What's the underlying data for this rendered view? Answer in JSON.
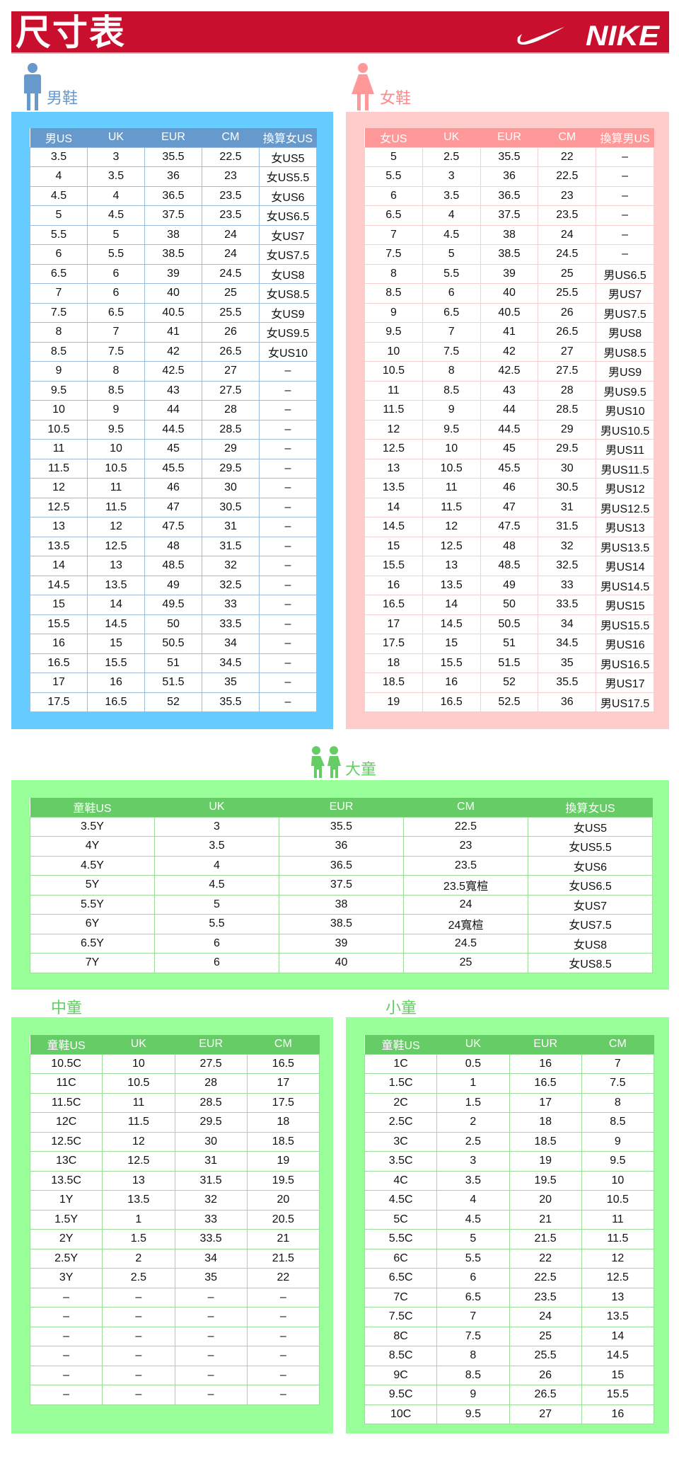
{
  "header": {
    "title": "尺寸表",
    "brand": "NIKE"
  },
  "colors": {
    "header": "#c8102e",
    "men_panel": "#66ccff",
    "men_header": "#6699cc",
    "women_panel": "#ffcccc",
    "women_header": "#ff9999",
    "kids_panel": "#99ff99",
    "kids_header": "#66cc66"
  },
  "men": {
    "label": "男鞋",
    "icon": "man-icon",
    "columns": [
      "男US",
      "UK",
      "EUR",
      "CM",
      "換算女US"
    ],
    "rows": [
      [
        "3.5",
        "3",
        "35.5",
        "22.5",
        "女US5"
      ],
      [
        "4",
        "3.5",
        "36",
        "23",
        "女US5.5"
      ],
      [
        "4.5",
        "4",
        "36.5",
        "23.5",
        "女US6"
      ],
      [
        "5",
        "4.5",
        "37.5",
        "23.5",
        "女US6.5"
      ],
      [
        "5.5",
        "5",
        "38",
        "24",
        "女US7"
      ],
      [
        "6",
        "5.5",
        "38.5",
        "24",
        "女US7.5"
      ],
      [
        "6.5",
        "6",
        "39",
        "24.5",
        "女US8"
      ],
      [
        "7",
        "6",
        "40",
        "25",
        "女US8.5"
      ],
      [
        "7.5",
        "6.5",
        "40.5",
        "25.5",
        "女US9"
      ],
      [
        "8",
        "7",
        "41",
        "26",
        "女US9.5"
      ],
      [
        "8.5",
        "7.5",
        "42",
        "26.5",
        "女US10"
      ],
      [
        "9",
        "8",
        "42.5",
        "27",
        "–"
      ],
      [
        "9.5",
        "8.5",
        "43",
        "27.5",
        "–"
      ],
      [
        "10",
        "9",
        "44",
        "28",
        "–"
      ],
      [
        "10.5",
        "9.5",
        "44.5",
        "28.5",
        "–"
      ],
      [
        "11",
        "10",
        "45",
        "29",
        "–"
      ],
      [
        "11.5",
        "10.5",
        "45.5",
        "29.5",
        "–"
      ],
      [
        "12",
        "11",
        "46",
        "30",
        "–"
      ],
      [
        "12.5",
        "11.5",
        "47",
        "30.5",
        "–"
      ],
      [
        "13",
        "12",
        "47.5",
        "31",
        "–"
      ],
      [
        "13.5",
        "12.5",
        "48",
        "31.5",
        "–"
      ],
      [
        "14",
        "13",
        "48.5",
        "32",
        "–"
      ],
      [
        "14.5",
        "13.5",
        "49",
        "32.5",
        "–"
      ],
      [
        "15",
        "14",
        "49.5",
        "33",
        "–"
      ],
      [
        "15.5",
        "14.5",
        "50",
        "33.5",
        "–"
      ],
      [
        "16",
        "15",
        "50.5",
        "34",
        "–"
      ],
      [
        "16.5",
        "15.5",
        "51",
        "34.5",
        "–"
      ],
      [
        "17",
        "16",
        "51.5",
        "35",
        "–"
      ],
      [
        "17.5",
        "16.5",
        "52",
        "35.5",
        "–"
      ]
    ]
  },
  "women": {
    "label": "女鞋",
    "icon": "woman-icon",
    "columns": [
      "女US",
      "UK",
      "EUR",
      "CM",
      "換算男US"
    ],
    "rows": [
      [
        "5",
        "2.5",
        "35.5",
        "22",
        "–"
      ],
      [
        "5.5",
        "3",
        "36",
        "22.5",
        "–"
      ],
      [
        "6",
        "3.5",
        "36.5",
        "23",
        "–"
      ],
      [
        "6.5",
        "4",
        "37.5",
        "23.5",
        "–"
      ],
      [
        "7",
        "4.5",
        "38",
        "24",
        "–"
      ],
      [
        "7.5",
        "5",
        "38.5",
        "24.5",
        "–"
      ],
      [
        "8",
        "5.5",
        "39",
        "25",
        "男US6.5"
      ],
      [
        "8.5",
        "6",
        "40",
        "25.5",
        "男US7"
      ],
      [
        "9",
        "6.5",
        "40.5",
        "26",
        "男US7.5"
      ],
      [
        "9.5",
        "7",
        "41",
        "26.5",
        "男US8"
      ],
      [
        "10",
        "7.5",
        "42",
        "27",
        "男US8.5"
      ],
      [
        "10.5",
        "8",
        "42.5",
        "27.5",
        "男US9"
      ],
      [
        "11",
        "8.5",
        "43",
        "28",
        "男US9.5"
      ],
      [
        "11.5",
        "9",
        "44",
        "28.5",
        "男US10"
      ],
      [
        "12",
        "9.5",
        "44.5",
        "29",
        "男US10.5"
      ],
      [
        "12.5",
        "10",
        "45",
        "29.5",
        "男US11"
      ],
      [
        "13",
        "10.5",
        "45.5",
        "30",
        "男US11.5"
      ],
      [
        "13.5",
        "11",
        "46",
        "30.5",
        "男US12"
      ],
      [
        "14",
        "11.5",
        "47",
        "31",
        "男US12.5"
      ],
      [
        "14.5",
        "12",
        "47.5",
        "31.5",
        "男US13"
      ],
      [
        "15",
        "12.5",
        "48",
        "32",
        "男US13.5"
      ],
      [
        "15.5",
        "13",
        "48.5",
        "32.5",
        "男US14"
      ],
      [
        "16",
        "13.5",
        "49",
        "33",
        "男US14.5"
      ],
      [
        "16.5",
        "14",
        "50",
        "33.5",
        "男US15"
      ],
      [
        "17",
        "14.5",
        "50.5",
        "34",
        "男US15.5"
      ],
      [
        "17.5",
        "15",
        "51",
        "34.5",
        "男US16"
      ],
      [
        "18",
        "15.5",
        "51.5",
        "35",
        "男US16.5"
      ],
      [
        "18.5",
        "16",
        "52",
        "35.5",
        "男US17"
      ],
      [
        "19",
        "16.5",
        "52.5",
        "36",
        "男US17.5"
      ]
    ]
  },
  "big_kids": {
    "label": "大童",
    "icon": "children-icon",
    "columns": [
      "童鞋US",
      "UK",
      "EUR",
      "CM",
      "換算女US"
    ],
    "rows": [
      [
        "3.5Y",
        "3",
        "35.5",
        "22.5",
        "女US5"
      ],
      [
        "4Y",
        "3.5",
        "36",
        "23",
        "女US5.5"
      ],
      [
        "4.5Y",
        "4",
        "36.5",
        "23.5",
        "女US6"
      ],
      [
        "5Y",
        "4.5",
        "37.5",
        "23.5寬楦",
        "女US6.5"
      ],
      [
        "5.5Y",
        "5",
        "38",
        "24",
        "女US7"
      ],
      [
        "6Y",
        "5.5",
        "38.5",
        "24寬楦",
        "女US7.5"
      ],
      [
        "6.5Y",
        "6",
        "39",
        "24.5",
        "女US8"
      ],
      [
        "7Y",
        "6",
        "40",
        "25",
        "女US8.5"
      ]
    ]
  },
  "mid_kids": {
    "label": "中童",
    "columns": [
      "童鞋US",
      "UK",
      "EUR",
      "CM"
    ],
    "rows": [
      [
        "10.5C",
        "10",
        "27.5",
        "16.5"
      ],
      [
        "11C",
        "10.5",
        "28",
        "17"
      ],
      [
        "11.5C",
        "11",
        "28.5",
        "17.5"
      ],
      [
        "12C",
        "11.5",
        "29.5",
        "18"
      ],
      [
        "12.5C",
        "12",
        "30",
        "18.5"
      ],
      [
        "13C",
        "12.5",
        "31",
        "19"
      ],
      [
        "13.5C",
        "13",
        "31.5",
        "19.5"
      ],
      [
        "1Y",
        "13.5",
        "32",
        "20"
      ],
      [
        "1.5Y",
        "1",
        "33",
        "20.5"
      ],
      [
        "2Y",
        "1.5",
        "33.5",
        "21"
      ],
      [
        "2.5Y",
        "2",
        "34",
        "21.5"
      ],
      [
        "3Y",
        "2.5",
        "35",
        "22"
      ],
      [
        "–",
        "–",
        "–",
        "–"
      ],
      [
        "–",
        "–",
        "–",
        "–"
      ],
      [
        "–",
        "–",
        "–",
        "–"
      ],
      [
        "–",
        "–",
        "–",
        "–"
      ],
      [
        "–",
        "–",
        "–",
        "–"
      ],
      [
        "–",
        "–",
        "–",
        "–"
      ]
    ]
  },
  "small_kids": {
    "label": "小童",
    "columns": [
      "童鞋US",
      "UK",
      "EUR",
      "CM"
    ],
    "rows": [
      [
        "1C",
        "0.5",
        "16",
        "7"
      ],
      [
        "1.5C",
        "1",
        "16.5",
        "7.5"
      ],
      [
        "2C",
        "1.5",
        "17",
        "8"
      ],
      [
        "2.5C",
        "2",
        "18",
        "8.5"
      ],
      [
        "3C",
        "2.5",
        "18.5",
        "9"
      ],
      [
        "3.5C",
        "3",
        "19",
        "9.5"
      ],
      [
        "4C",
        "3.5",
        "19.5",
        "10"
      ],
      [
        "4.5C",
        "4",
        "20",
        "10.5"
      ],
      [
        "5C",
        "4.5",
        "21",
        "11"
      ],
      [
        "5.5C",
        "5",
        "21.5",
        "11.5"
      ],
      [
        "6C",
        "5.5",
        "22",
        "12"
      ],
      [
        "6.5C",
        "6",
        "22.5",
        "12.5"
      ],
      [
        "7C",
        "6.5",
        "23.5",
        "13"
      ],
      [
        "7.5C",
        "7",
        "24",
        "13.5"
      ],
      [
        "8C",
        "7.5",
        "25",
        "14"
      ],
      [
        "8.5C",
        "8",
        "25.5",
        "14.5"
      ],
      [
        "9C",
        "8.5",
        "26",
        "15"
      ],
      [
        "9.5C",
        "9",
        "26.5",
        "15.5"
      ],
      [
        "10C",
        "9.5",
        "27",
        "16"
      ]
    ]
  }
}
